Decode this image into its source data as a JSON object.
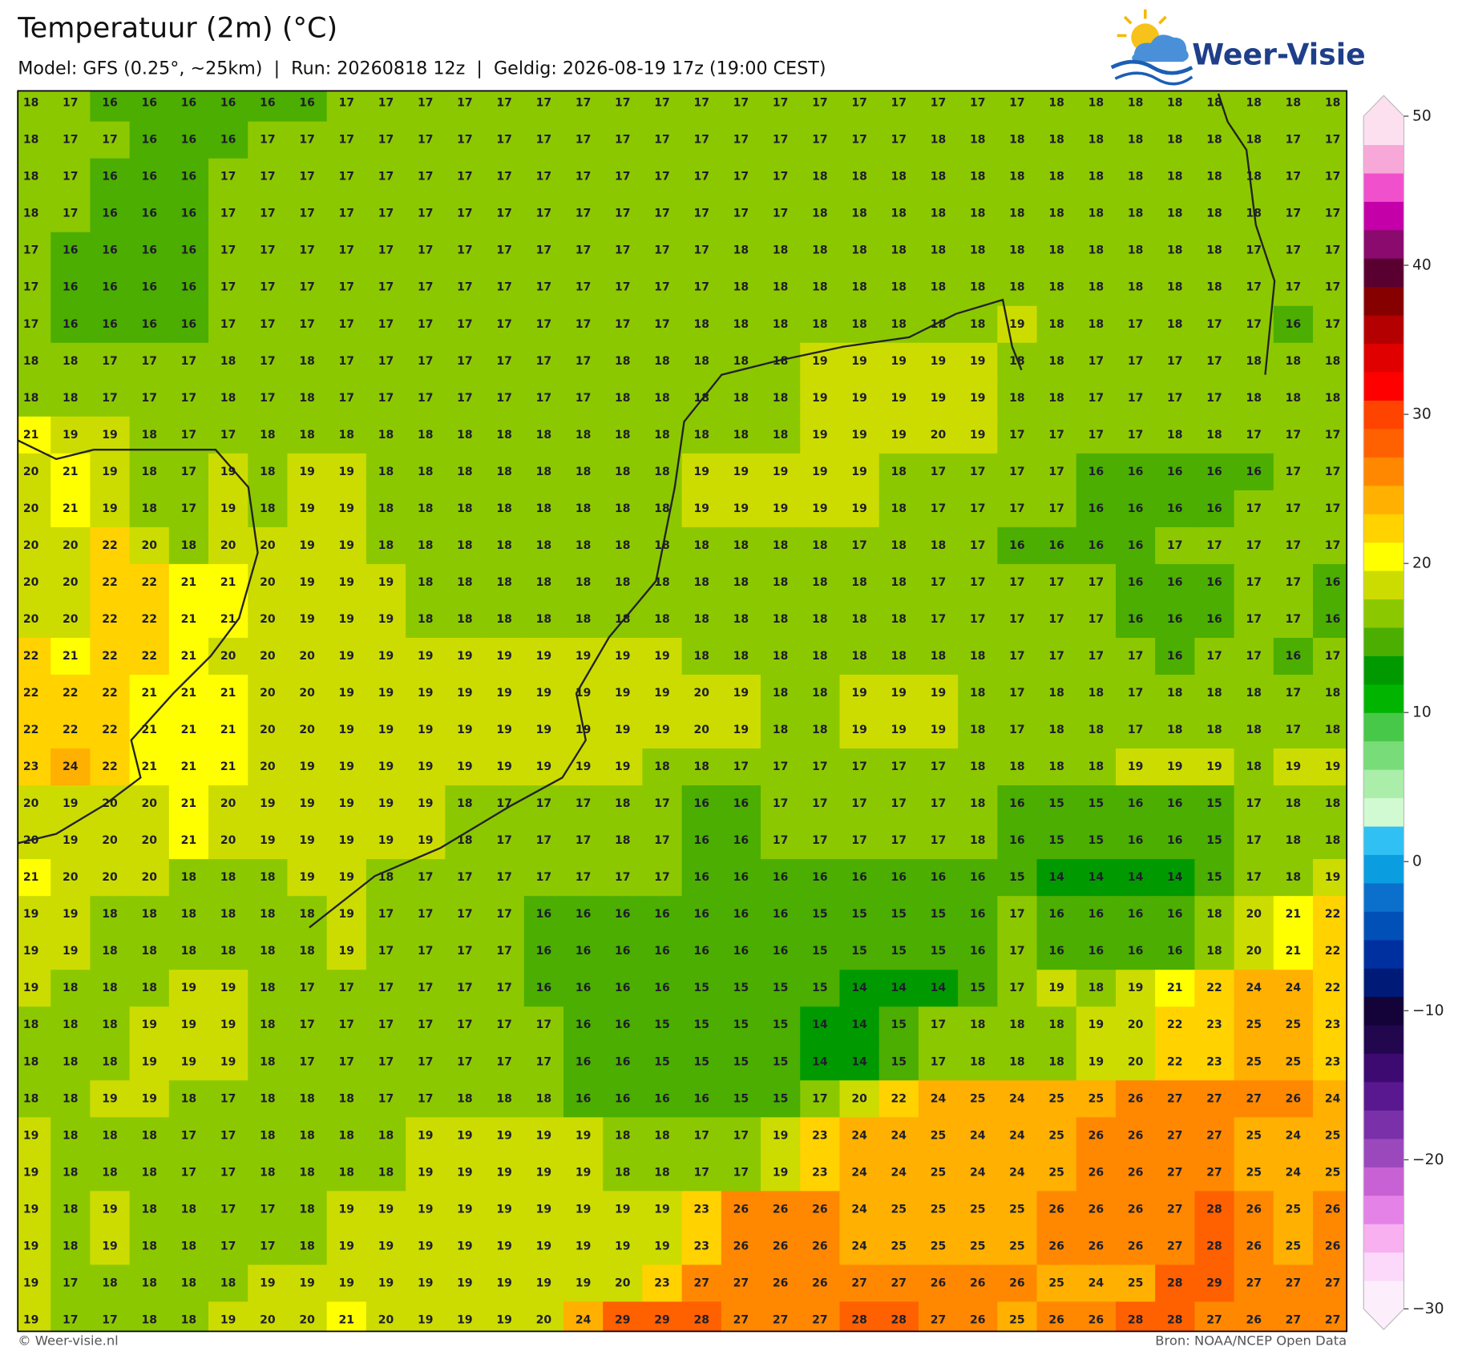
{
  "map": {
    "title": "Temperatuur (2m) (°C)",
    "subtitle": "Model: GFS (0.25°, ~25km)  |  Run: 20260818 12z  |  Geldig: 2026-08-19 17z (19:00 CEST)",
    "logo": "Weer-Visie",
    "footer_left": "© Weer-visie.nl",
    "footer_right": "Bron: NOAA/NCEP Open Data",
    "values": [
      [
        18,
        17,
        16,
        16,
        16,
        16,
        16,
        16,
        17,
        17,
        17,
        17,
        17,
        17,
        17,
        17,
        17,
        17,
        17,
        17,
        17,
        17,
        17,
        17,
        17,
        17,
        18,
        18,
        18,
        18,
        18,
        18,
        18,
        18
      ],
      [
        18,
        17,
        17,
        16,
        16,
        16,
        17,
        17,
        17,
        17,
        17,
        17,
        17,
        17,
        17,
        17,
        17,
        17,
        17,
        17,
        17,
        17,
        17,
        18,
        18,
        18,
        18,
        18,
        18,
        18,
        18,
        18,
        17,
        17
      ],
      [
        18,
        17,
        16,
        16,
        16,
        17,
        17,
        17,
        17,
        17,
        17,
        17,
        17,
        17,
        17,
        17,
        17,
        17,
        17,
        17,
        18,
        18,
        18,
        18,
        18,
        18,
        18,
        18,
        18,
        18,
        18,
        18,
        17,
        17
      ],
      [
        18,
        17,
        16,
        16,
        16,
        17,
        17,
        17,
        17,
        17,
        17,
        17,
        17,
        17,
        17,
        17,
        17,
        17,
        17,
        17,
        18,
        18,
        18,
        18,
        18,
        18,
        18,
        18,
        18,
        18,
        18,
        18,
        17,
        17
      ],
      [
        17,
        16,
        16,
        16,
        16,
        17,
        17,
        17,
        17,
        17,
        17,
        17,
        17,
        17,
        17,
        17,
        17,
        17,
        18,
        18,
        18,
        18,
        18,
        18,
        18,
        18,
        18,
        18,
        18,
        18,
        18,
        17,
        17,
        17
      ],
      [
        17,
        16,
        16,
        16,
        16,
        17,
        17,
        17,
        17,
        17,
        17,
        17,
        17,
        17,
        17,
        17,
        17,
        17,
        18,
        18,
        18,
        18,
        18,
        18,
        18,
        18,
        18,
        18,
        18,
        18,
        18,
        17,
        17,
        17
      ],
      [
        17,
        16,
        16,
        16,
        16,
        17,
        17,
        17,
        17,
        17,
        17,
        17,
        17,
        17,
        17,
        17,
        17,
        18,
        18,
        18,
        18,
        18,
        18,
        18,
        18,
        19,
        18,
        18,
        17,
        18,
        17,
        17,
        16,
        17
      ],
      [
        18,
        18,
        17,
        17,
        17,
        18,
        17,
        18,
        17,
        17,
        17,
        17,
        17,
        17,
        17,
        18,
        18,
        18,
        18,
        18,
        19,
        19,
        19,
        19,
        19,
        18,
        18,
        17,
        17,
        17,
        17,
        18,
        18,
        18
      ],
      [
        18,
        18,
        17,
        17,
        17,
        18,
        17,
        18,
        17,
        17,
        17,
        17,
        17,
        17,
        17,
        18,
        18,
        18,
        18,
        18,
        19,
        19,
        19,
        19,
        19,
        18,
        18,
        17,
        17,
        17,
        17,
        18,
        18,
        18
      ],
      [
        21,
        19,
        19,
        18,
        17,
        17,
        18,
        18,
        18,
        18,
        18,
        18,
        18,
        18,
        18,
        18,
        18,
        18,
        18,
        18,
        19,
        19,
        19,
        20,
        19,
        17,
        17,
        17,
        17,
        18,
        18,
        17,
        17,
        17
      ],
      [
        20,
        21,
        19,
        18,
        17,
        19,
        18,
        19,
        19,
        18,
        18,
        18,
        18,
        18,
        18,
        18,
        18,
        19,
        19,
        19,
        19,
        19,
        18,
        17,
        17,
        17,
        17,
        16,
        16,
        16,
        16,
        16,
        17,
        17
      ],
      [
        20,
        21,
        19,
        18,
        17,
        19,
        18,
        19,
        19,
        18,
        18,
        18,
        18,
        18,
        18,
        18,
        18,
        19,
        19,
        19,
        19,
        19,
        18,
        17,
        17,
        17,
        17,
        16,
        16,
        16,
        16,
        17,
        17,
        17
      ],
      [
        20,
        20,
        22,
        20,
        18,
        20,
        20,
        19,
        19,
        18,
        18,
        18,
        18,
        18,
        18,
        18,
        18,
        18,
        18,
        18,
        18,
        17,
        18,
        18,
        17,
        16,
        16,
        16,
        16,
        17,
        17,
        17,
        17,
        17
      ],
      [
        20,
        20,
        22,
        22,
        21,
        21,
        20,
        19,
        19,
        19,
        18,
        18,
        18,
        18,
        18,
        18,
        18,
        18,
        18,
        18,
        18,
        18,
        18,
        17,
        17,
        17,
        17,
        17,
        16,
        16,
        16,
        17,
        17,
        16
      ],
      [
        20,
        20,
        22,
        22,
        21,
        21,
        20,
        19,
        19,
        19,
        18,
        18,
        18,
        18,
        18,
        18,
        18,
        18,
        18,
        18,
        18,
        18,
        18,
        17,
        17,
        17,
        17,
        17,
        16,
        16,
        16,
        17,
        17,
        16
      ],
      [
        22,
        21,
        22,
        22,
        21,
        20,
        20,
        20,
        19,
        19,
        19,
        19,
        19,
        19,
        19,
        19,
        19,
        18,
        18,
        18,
        18,
        18,
        18,
        18,
        18,
        17,
        17,
        17,
        17,
        16,
        17,
        17,
        16,
        17
      ],
      [
        22,
        22,
        22,
        21,
        21,
        21,
        20,
        20,
        19,
        19,
        19,
        19,
        19,
        19,
        19,
        19,
        19,
        20,
        19,
        18,
        18,
        19,
        19,
        19,
        18,
        17,
        18,
        18,
        17,
        18,
        18,
        18,
        17,
        18
      ],
      [
        22,
        22,
        22,
        21,
        21,
        21,
        20,
        20,
        19,
        19,
        19,
        19,
        19,
        19,
        19,
        19,
        19,
        20,
        19,
        18,
        18,
        19,
        19,
        19,
        18,
        17,
        18,
        18,
        17,
        18,
        18,
        18,
        17,
        18
      ],
      [
        23,
        24,
        22,
        21,
        21,
        21,
        20,
        19,
        19,
        19,
        19,
        19,
        19,
        19,
        19,
        19,
        18,
        18,
        17,
        17,
        17,
        17,
        17,
        17,
        18,
        18,
        18,
        18,
        19,
        19,
        19,
        18,
        19,
        19
      ],
      [
        20,
        19,
        20,
        20,
        21,
        20,
        19,
        19,
        19,
        19,
        19,
        18,
        17,
        17,
        17,
        18,
        17,
        16,
        16,
        17,
        17,
        17,
        17,
        17,
        18,
        16,
        15,
        15,
        16,
        16,
        15,
        17,
        18,
        18
      ],
      [
        20,
        19,
        20,
        20,
        21,
        20,
        19,
        19,
        19,
        19,
        19,
        18,
        17,
        17,
        17,
        18,
        17,
        16,
        16,
        17,
        17,
        17,
        17,
        17,
        18,
        16,
        15,
        15,
        16,
        16,
        15,
        17,
        18,
        18
      ],
      [
        21,
        20,
        20,
        20,
        18,
        18,
        18,
        19,
        19,
        18,
        17,
        17,
        17,
        17,
        17,
        17,
        17,
        16,
        16,
        16,
        16,
        16,
        16,
        16,
        16,
        15,
        14,
        14,
        14,
        14,
        15,
        17,
        18,
        19
      ],
      [
        19,
        19,
        18,
        18,
        18,
        18,
        18,
        18,
        19,
        17,
        17,
        17,
        17,
        16,
        16,
        16,
        16,
        16,
        16,
        16,
        15,
        15,
        15,
        15,
        16,
        17,
        16,
        16,
        16,
        16,
        18,
        20,
        21,
        22
      ],
      [
        19,
        19,
        18,
        18,
        18,
        18,
        18,
        18,
        19,
        17,
        17,
        17,
        17,
        16,
        16,
        16,
        16,
        16,
        16,
        16,
        15,
        15,
        15,
        15,
        16,
        17,
        16,
        16,
        16,
        16,
        18,
        20,
        21,
        22
      ],
      [
        19,
        18,
        18,
        18,
        19,
        19,
        18,
        17,
        17,
        17,
        17,
        17,
        17,
        16,
        16,
        16,
        16,
        15,
        15,
        15,
        15,
        14,
        14,
        14,
        15,
        17,
        19,
        18,
        19,
        21,
        22,
        24,
        24,
        22
      ],
      [
        18,
        18,
        18,
        19,
        19,
        19,
        18,
        17,
        17,
        17,
        17,
        17,
        17,
        17,
        16,
        16,
        15,
        15,
        15,
        15,
        14,
        14,
        15,
        17,
        18,
        18,
        18,
        19,
        20,
        22,
        23,
        25,
        25,
        23
      ],
      [
        18,
        18,
        18,
        19,
        19,
        19,
        18,
        17,
        17,
        17,
        17,
        17,
        17,
        17,
        16,
        16,
        15,
        15,
        15,
        15,
        14,
        14,
        15,
        17,
        18,
        18,
        18,
        19,
        20,
        22,
        23,
        25,
        25,
        23
      ],
      [
        18,
        18,
        19,
        19,
        18,
        17,
        18,
        18,
        18,
        17,
        17,
        18,
        18,
        18,
        16,
        16,
        16,
        16,
        15,
        15,
        17,
        20,
        22,
        24,
        25,
        24,
        25,
        25,
        26,
        27,
        27,
        27,
        26,
        24
      ],
      [
        19,
        18,
        18,
        18,
        17,
        17,
        18,
        18,
        18,
        18,
        19,
        19,
        19,
        19,
        19,
        18,
        18,
        17,
        17,
        19,
        23,
        24,
        24,
        25,
        24,
        24,
        25,
        26,
        26,
        27,
        27,
        25,
        24,
        25
      ],
      [
        19,
        18,
        18,
        18,
        17,
        17,
        18,
        18,
        18,
        18,
        19,
        19,
        19,
        19,
        19,
        18,
        18,
        17,
        17,
        19,
        23,
        24,
        24,
        25,
        24,
        24,
        25,
        26,
        26,
        27,
        27,
        25,
        24,
        25
      ],
      [
        19,
        18,
        19,
        18,
        18,
        17,
        17,
        18,
        19,
        19,
        19,
        19,
        19,
        19,
        19,
        19,
        19,
        23,
        26,
        26,
        26,
        24,
        25,
        25,
        25,
        25,
        26,
        26,
        26,
        27,
        28,
        26,
        25,
        26
      ],
      [
        19,
        18,
        19,
        18,
        18,
        17,
        17,
        18,
        19,
        19,
        19,
        19,
        19,
        19,
        19,
        19,
        19,
        23,
        26,
        26,
        26,
        24,
        25,
        25,
        25,
        25,
        26,
        26,
        26,
        27,
        28,
        26,
        25,
        26
      ],
      [
        19,
        17,
        18,
        18,
        18,
        18,
        19,
        19,
        19,
        19,
        19,
        19,
        19,
        19,
        19,
        20,
        23,
        27,
        27,
        26,
        26,
        27,
        27,
        26,
        26,
        26,
        25,
        24,
        25,
        28,
        29,
        27,
        27,
        27
      ],
      [
        19,
        17,
        17,
        18,
        18,
        19,
        20,
        20,
        21,
        20,
        19,
        19,
        19,
        20,
        24,
        29,
        29,
        28,
        27,
        27,
        27,
        28,
        28,
        27,
        26,
        25,
        26,
        26,
        28,
        28,
        27,
        26,
        27,
        27
      ]
    ],
    "colorbar": {
      "vmin": -30,
      "vmax": 50,
      "colors": [
        "#fdeefc",
        "#fcd8fa",
        "#f8b0f0",
        "#e482e8",
        "#c862d4",
        "#9a48bc",
        "#7a30a8",
        "#5a1890",
        "#3c0a70",
        "#22064e",
        "#140338",
        "#001a78",
        "#0030a0",
        "#0050b8",
        "#0a70cc",
        "#0a9ee0",
        "#30c0f4",
        "#d2fad2",
        "#aaeeaa",
        "#78dc78",
        "#48c848",
        "#00b400",
        "#009a00",
        "#4bae00",
        "#8cc800",
        "#cddc00",
        "#ffff00",
        "#ffd200",
        "#ffb000",
        "#ff8800",
        "#ff6000",
        "#ff4400",
        "#ff0000",
        "#e00000",
        "#b40000",
        "#860000",
        "#5a0030",
        "#8a0a6e",
        "#c400a8",
        "#f050cc",
        "#f8a8d8",
        "#fde0f0"
      ],
      "ticks": [
        {
          "value": -30,
          "label": "−30"
        },
        {
          "value": -20,
          "label": "−20"
        },
        {
          "value": -10,
          "label": "−10"
        },
        0,
        10,
        20,
        30,
        40,
        50
      ]
    }
  }
}
